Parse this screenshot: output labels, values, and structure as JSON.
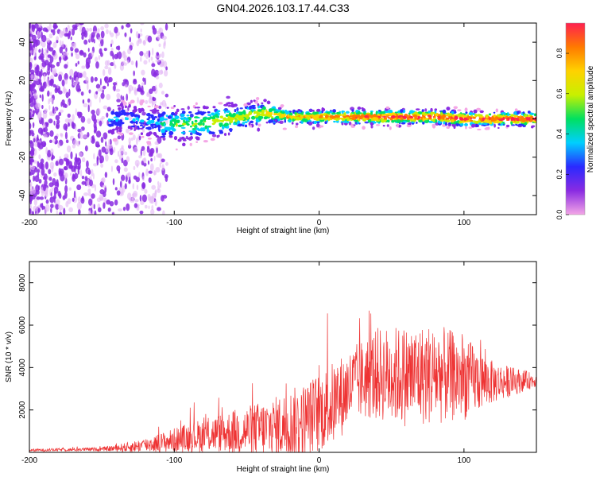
{
  "title": "GN04.2026.103.17.44.C33",
  "chart_data": [
    {
      "type": "heatmap",
      "name": "spectrogram",
      "xlabel": "Height of straight line (km)",
      "ylabel": "Frequency (Hz)",
      "xlim": [
        -200,
        150
      ],
      "ylim": [
        -50,
        50
      ],
      "xticks": [
        -200,
        -100,
        0,
        100
      ],
      "xtick_labels": [
        "-200",
        "-100",
        "0",
        "100"
      ],
      "yticks": [
        -40,
        -20,
        0,
        20,
        40
      ],
      "ytick_labels": [
        "-40",
        "-20",
        "0",
        "20",
        "40"
      ],
      "colorbar": {
        "label": "Normalized spectral amplitude",
        "range": [
          0,
          0.95
        ],
        "ticks": [
          0.0,
          0.2,
          0.4,
          0.6,
          0.8
        ],
        "tick_labels": [
          "0.0",
          "0.2",
          "0.4",
          "0.6",
          "0.8"
        ],
        "stops": [
          "#f4a6e6",
          "#8a2be2",
          "#2a2aff",
          "#00cfff",
          "#00e060",
          "#c8f000",
          "#ffd200",
          "#ff7a00",
          "#ff2050"
        ]
      },
      "band_center_profile": {
        "x": [
          -130,
          -110,
          -95,
          -80,
          -60,
          -40,
          -35,
          -20,
          0,
          20,
          40,
          60,
          80,
          100,
          120,
          150
        ],
        "freq": [
          0,
          -2,
          -3,
          -2,
          0,
          3,
          3,
          1,
          1,
          1,
          1,
          1,
          1,
          0,
          0,
          0
        ]
      }
    },
    {
      "type": "line",
      "name": "snr",
      "xlabel": "Height of straight line (km)",
      "ylabel": "SNR (10 * v/v)",
      "xlim": [
        -200,
        150
      ],
      "ylim": [
        0,
        9000
      ],
      "xticks": [
        -200,
        -100,
        0,
        100
      ],
      "xtick_labels": [
        "-200",
        "-100",
        "0",
        "100"
      ],
      "yticks": [
        2000,
        4000,
        6000,
        8000
      ],
      "ytick_labels": [
        "2000",
        "4000",
        "6000",
        "8000"
      ],
      "color": "#ee3333",
      "envelope": {
        "x": [
          -200,
          -150,
          -130,
          -110,
          -90,
          -70,
          -50,
          -30,
          -10,
          10,
          25,
          40,
          60,
          80,
          100,
          120,
          150
        ],
        "base": [
          100,
          150,
          250,
          450,
          700,
          900,
          1000,
          1150,
          1500,
          2300,
          3300,
          3700,
          3600,
          3700,
          3500,
          3300,
          3400
        ],
        "amplitude": [
          60,
          90,
          250,
          450,
          700,
          900,
          1200,
          1500,
          1800,
          2000,
          1800,
          2200,
          2400,
          2400,
          2000,
          1000,
          300
        ]
      }
    }
  ]
}
